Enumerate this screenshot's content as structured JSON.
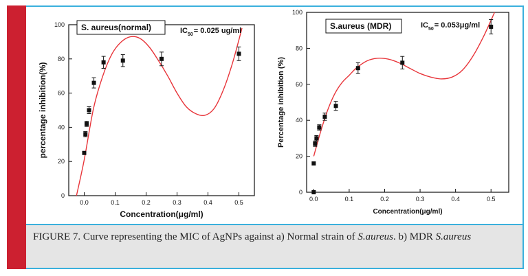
{
  "figure": {
    "caption": {
      "part1": "FIGURE 7. Curve representing the MIC of AgNPs against a) Normal strain of ",
      "italic1": "S.aureus",
      "part2": ". b) MDR ",
      "italic2": "S.aureus"
    }
  },
  "colors": {
    "frame_red": "#cc2030",
    "frame_blue": "#3ab0dd",
    "caption_bg": "#e5e5e5",
    "fit_line": "#e8353a",
    "points": "#111111"
  },
  "chart_data": [
    {
      "type": "scatter",
      "legend_label": "S. aureus(normal)",
      "annotation": {
        "ic_prefix": "IC",
        "ic_sub": "50",
        "ic_value": "= 0.025 ug/ml"
      },
      "xlabel": "Concentration(μg/ml)",
      "ylabel": "percentage inhibition(%)",
      "xlim": [
        -0.05,
        0.55
      ],
      "ylim": [
        0,
        100
      ],
      "xticks": [
        "0.0",
        "0.1",
        "0.2",
        "0.3",
        "0.4",
        "0.5"
      ],
      "yticks": [
        "0",
        "20",
        "40",
        "60",
        "80",
        "100"
      ],
      "points": [
        {
          "x": 0.0,
          "y": 25,
          "err": 0
        },
        {
          "x": 0.0039,
          "y": 36,
          "err": 1.5
        },
        {
          "x": 0.0078,
          "y": 42,
          "err": 1.5
        },
        {
          "x": 0.0156,
          "y": 50,
          "err": 2
        },
        {
          "x": 0.03125,
          "y": 66,
          "err": 3
        },
        {
          "x": 0.0625,
          "y": 78,
          "err": 3.5
        },
        {
          "x": 0.125,
          "y": 79,
          "err": 3.5
        },
        {
          "x": 0.25,
          "y": 80,
          "err": 4
        },
        {
          "x": 0.5,
          "y": 83,
          "err": 4
        }
      ],
      "fit": {
        "x": [
          -0.025,
          0.0,
          0.03,
          0.06,
          0.09,
          0.12,
          0.15,
          0.18,
          0.21,
          0.24,
          0.27,
          0.3,
          0.33,
          0.36,
          0.39,
          0.42,
          0.45,
          0.48,
          0.51
        ],
        "y": [
          0,
          21,
          51,
          70,
          83,
          90,
          93,
          92,
          87,
          79,
          70,
          60,
          52,
          48,
          47,
          51,
          62,
          78,
          98
        ]
      }
    },
    {
      "type": "scatter",
      "legend_label": "S.aureus (MDR)",
      "annotation": {
        "ic_prefix": "IC",
        "ic_sub": "50",
        "ic_value": "= 0.053μg/ml"
      },
      "xlabel": "Concentration(μg/ml)",
      "ylabel": "Percentage inhibition (%)",
      "xlim": [
        -0.02,
        0.55
      ],
      "ylim": [
        0,
        100
      ],
      "xticks": [
        "0.0",
        "0.1",
        "0.2",
        "0.3",
        "0.4",
        "0.5"
      ],
      "yticks": [
        "0",
        "20",
        "40",
        "60",
        "80",
        "100"
      ],
      "points": [
        {
          "x": 0.0,
          "y": 0,
          "err": 0
        },
        {
          "x": 0.0,
          "y": 16,
          "err": 0
        },
        {
          "x": 0.0039,
          "y": 27,
          "err": 1.5
        },
        {
          "x": 0.0078,
          "y": 30,
          "err": 1.5
        },
        {
          "x": 0.0156,
          "y": 36,
          "err": 1.5
        },
        {
          "x": 0.03125,
          "y": 42,
          "err": 2
        },
        {
          "x": 0.0625,
          "y": 48,
          "err": 2.5
        },
        {
          "x": 0.125,
          "y": 69,
          "err": 3
        },
        {
          "x": 0.25,
          "y": 72,
          "err": 3.5
        },
        {
          "x": 0.5,
          "y": 92,
          "err": 4
        }
      ],
      "fit": {
        "x": [
          0.0,
          0.02,
          0.04,
          0.06,
          0.08,
          0.1,
          0.12,
          0.15,
          0.18,
          0.21,
          0.24,
          0.27,
          0.3,
          0.33,
          0.36,
          0.39,
          0.42,
          0.45,
          0.48,
          0.51
        ],
        "y": [
          20,
          34,
          46,
          55,
          61,
          65,
          69,
          73,
          74.5,
          74,
          72,
          69,
          66,
          64,
          63,
          64,
          68,
          76,
          87,
          100
        ]
      }
    }
  ]
}
